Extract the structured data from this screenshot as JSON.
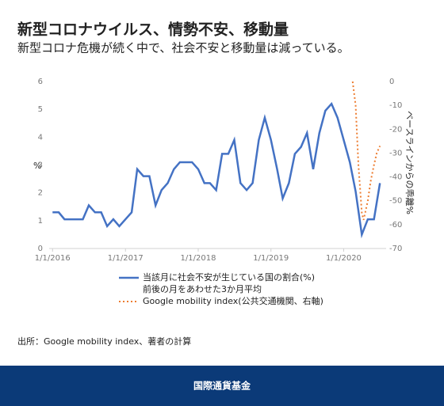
{
  "chart_data": {
    "type": "line",
    "title": "新型コロナウイルス、情勢不安、移動量",
    "subtitle": "新型コロナ危機が続く中で、社会不安と移動量は減っている。",
    "ylabel": "%",
    "y2label": "ベースラインからの乖離%",
    "source": "出所：Google mobility index、著者の計算",
    "footer": "国際通貨基金",
    "xlim": [
      "2015-12-15",
      "2020-08-01"
    ],
    "xticks": [
      {
        "value": "2016-01-01",
        "label": "1/1/2016"
      },
      {
        "value": "2017-01-01",
        "label": "1/1/2017"
      },
      {
        "value": "2018-01-01",
        "label": "1/1/2018"
      },
      {
        "value": "2019-01-01",
        "label": "1/1/2019"
      },
      {
        "value": "2020-01-01",
        "label": "1/1/2020"
      }
    ],
    "ylim": [
      0,
      6
    ],
    "yticks": [
      0,
      1,
      2,
      3,
      4,
      5,
      6
    ],
    "y2lim": [
      -70,
      0
    ],
    "y2ticks": [
      -70,
      -60,
      -50,
      -40,
      -30,
      -20,
      -10,
      0
    ],
    "grid": false,
    "series": [
      {
        "name": "当該月に社会不安が生じている国の割合(%)\n前後の月をあわせた3か月平均",
        "color": "#4472c4",
        "style": "solid",
        "x": [
          "2016-01-01",
          "2016-02-01",
          "2016-03-01",
          "2016-04-01",
          "2016-05-01",
          "2016-06-01",
          "2016-07-01",
          "2016-08-01",
          "2016-09-01",
          "2016-10-01",
          "2016-11-01",
          "2016-12-01",
          "2017-01-01",
          "2017-02-01",
          "2017-03-01",
          "2017-04-01",
          "2017-05-01",
          "2017-06-01",
          "2017-07-01",
          "2017-08-01",
          "2017-09-01",
          "2017-10-01",
          "2017-11-01",
          "2017-12-01",
          "2018-01-01",
          "2018-02-01",
          "2018-03-01",
          "2018-04-01",
          "2018-05-01",
          "2018-06-01",
          "2018-07-01",
          "2018-08-01",
          "2018-09-01",
          "2018-10-01",
          "2018-11-01",
          "2018-12-01",
          "2019-01-01",
          "2019-02-01",
          "2019-03-01",
          "2019-04-01",
          "2019-05-01",
          "2019-06-01",
          "2019-07-01",
          "2019-08-01",
          "2019-09-01",
          "2019-10-01",
          "2019-11-01",
          "2019-12-01",
          "2020-01-01",
          "2020-02-01",
          "2020-03-01",
          "2020-04-01",
          "2020-05-01",
          "2020-06-01",
          "2020-07-01"
        ],
        "values": [
          1.3,
          1.3,
          1.05,
          1.05,
          1.05,
          1.05,
          1.55,
          1.3,
          1.3,
          0.8,
          1.05,
          0.8,
          1.05,
          1.3,
          2.85,
          2.6,
          2.6,
          1.55,
          2.1,
          2.35,
          2.85,
          3.1,
          3.1,
          3.1,
          2.85,
          2.35,
          2.35,
          2.1,
          3.4,
          3.4,
          3.9,
          2.35,
          2.1,
          2.35,
          3.9,
          4.7,
          3.9,
          2.85,
          1.8,
          2.35,
          3.4,
          3.65,
          4.15,
          2.85,
          4.15,
          4.95,
          5.2,
          4.7,
          3.9,
          3.1,
          2.05,
          0.5,
          1.05,
          1.05,
          2.35
        ]
      },
      {
        "name": "Google mobility index(公共交通機関、右軸)",
        "color": "#ed7d31",
        "style": "dotted",
        "axis": "y2",
        "x": [
          "2020-02-15",
          "2020-03-01",
          "2020-03-15",
          "2020-04-01",
          "2020-04-10",
          "2020-05-01",
          "2020-05-15",
          "2020-06-01",
          "2020-06-15",
          "2020-07-01"
        ],
        "values": [
          0,
          -10,
          -35,
          -55,
          -58,
          -50,
          -42,
          -35,
          -30,
          -27
        ]
      }
    ]
  }
}
